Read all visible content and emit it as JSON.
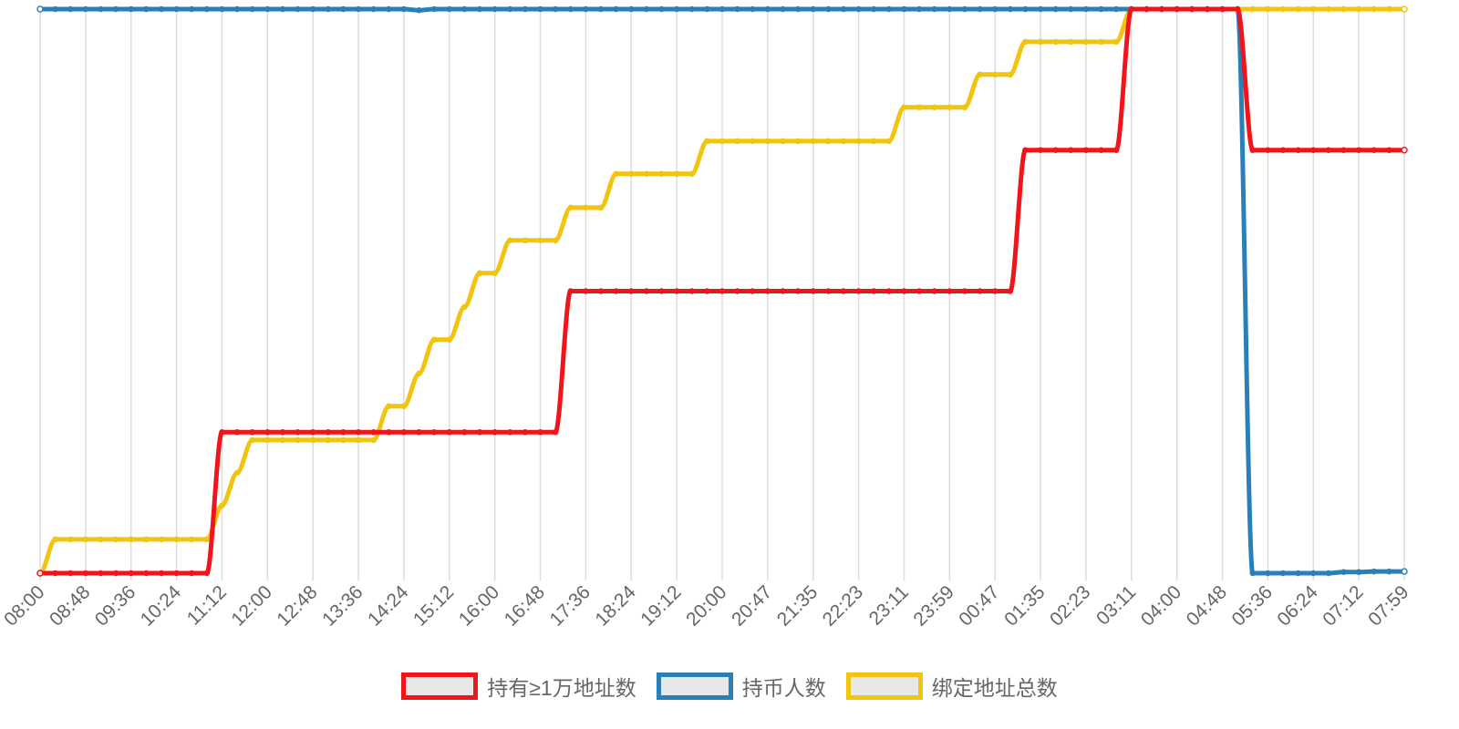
{
  "chart_data": {
    "type": "line",
    "categories": [
      "08:00",
      null,
      null,
      "08:48",
      null,
      null,
      "09:36",
      null,
      null,
      "10:24",
      null,
      null,
      "11:12",
      null,
      null,
      "12:00",
      null,
      null,
      "12:48",
      null,
      null,
      "13:36",
      null,
      null,
      "14:24",
      null,
      null,
      "15:12",
      null,
      null,
      "16:00",
      null,
      null,
      "16:48",
      null,
      null,
      "17:36",
      null,
      null,
      "18:24",
      null,
      null,
      "19:12",
      null,
      null,
      "20:00",
      null,
      null,
      "20:47",
      null,
      null,
      "21:35",
      null,
      null,
      "22:23",
      null,
      null,
      "23:11",
      null,
      null,
      "23:59",
      null,
      null,
      "00:47",
      null,
      null,
      "01:35",
      null,
      null,
      "02:23",
      null,
      null,
      "03:11",
      null,
      null,
      "04:00",
      null,
      null,
      "04:48",
      null,
      null,
      "05:36",
      null,
      null,
      "06:24",
      null,
      null,
      "07:12",
      null,
      null,
      "07:59"
    ],
    "series": [
      {
        "name": "持有≥1万地址数",
        "color": "#f2141b",
        "values": [
          0,
          0,
          0,
          0,
          0,
          0,
          0,
          0,
          0,
          0,
          0,
          0,
          25,
          25,
          25,
          25,
          25,
          25,
          25,
          25,
          25,
          25,
          25,
          25,
          25,
          25,
          25,
          25,
          25,
          25,
          25,
          25,
          25,
          25,
          25,
          50,
          50,
          50,
          50,
          50,
          50,
          50,
          50,
          50,
          50,
          50,
          50,
          50,
          50,
          50,
          50,
          50,
          50,
          50,
          50,
          50,
          50,
          50,
          50,
          50,
          50,
          50,
          50,
          50,
          50,
          75,
          75,
          75,
          75,
          75,
          75,
          75,
          100,
          100,
          100,
          100,
          100,
          100,
          100,
          100,
          75,
          75,
          75,
          75,
          75,
          75,
          75,
          75,
          75,
          75,
          75
        ]
      },
      {
        "name": "持币人数",
        "color": "#2980b9",
        "values": [
          100,
          100,
          100,
          100,
          100,
          100,
          100,
          100,
          100,
          100,
          100,
          100,
          100,
          100,
          100,
          100,
          100,
          100,
          100,
          100,
          100,
          100,
          100,
          100,
          100,
          99.8,
          100,
          100,
          100,
          100,
          100,
          100,
          100,
          100,
          100,
          100,
          100,
          100,
          100,
          100,
          100,
          100,
          100,
          100,
          100,
          100,
          100,
          100,
          100,
          100,
          100,
          100,
          100,
          100,
          100,
          100,
          100,
          100,
          100,
          100,
          100,
          100,
          100,
          100,
          100,
          100,
          100,
          100,
          100,
          100,
          100,
          100,
          100,
          100,
          100,
          100,
          100,
          100,
          100,
          100,
          0,
          0,
          0,
          0,
          0,
          0,
          0.2,
          0.2,
          0.3,
          0.3,
          0.3
        ]
      },
      {
        "name": "绑定地址总数",
        "color": "#f1c40f",
        "values": [
          0,
          6,
          6,
          6,
          6,
          6,
          6,
          6,
          6,
          6,
          6,
          6,
          12,
          17.8,
          23.6,
          23.6,
          23.6,
          23.6,
          23.6,
          23.6,
          23.6,
          23.6,
          23.6,
          29.6,
          29.6,
          35.4,
          41.4,
          41.4,
          47.2,
          53.2,
          53.2,
          59,
          59,
          59,
          59,
          64.8,
          64.8,
          64.8,
          70.8,
          70.8,
          70.8,
          70.8,
          70.8,
          70.8,
          76.6,
          76.6,
          76.6,
          76.6,
          76.6,
          76.6,
          76.6,
          76.6,
          76.6,
          76.6,
          76.6,
          76.6,
          76.6,
          82.6,
          82.6,
          82.6,
          82.6,
          82.6,
          88.4,
          88.4,
          88.4,
          94.2,
          94.2,
          94.2,
          94.2,
          94.2,
          94.2,
          94.2,
          100,
          100,
          100,
          100,
          100,
          100,
          100,
          100,
          100,
          100,
          100,
          100,
          100,
          100,
          100,
          100,
          100,
          100,
          100
        ]
      }
    ],
    "ylim": [
      0,
      100
    ],
    "grid": true
  }
}
